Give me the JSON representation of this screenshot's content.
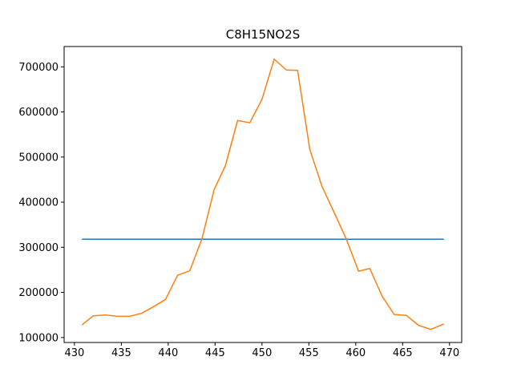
{
  "chart_data": {
    "type": "line",
    "title": "C8H15NO2S",
    "xlabel": "",
    "ylabel": "",
    "xlim": [
      428.9,
      471.3
    ],
    "ylim": [
      89000,
      745000
    ],
    "grid": false,
    "x_ticks": [
      430,
      435,
      440,
      445,
      450,
      455,
      460,
      465,
      470
    ],
    "y_ticks": [
      100000,
      200000,
      300000,
      400000,
      500000,
      600000,
      700000
    ],
    "series": [
      {
        "color": "#1f77b4",
        "x": [
          430.8,
          469.4
        ],
        "y": [
          318000,
          318000
        ]
      },
      {
        "color": "#ff7f0e",
        "x": [
          430.8,
          432.0,
          433.3,
          434.6,
          435.9,
          437.2,
          438.4,
          439.7,
          441.0,
          442.3,
          443.6,
          444.9,
          446.1,
          447.4,
          448.7,
          450.0,
          451.3,
          452.6,
          453.8,
          455.1,
          456.4,
          457.7,
          459.0,
          460.3,
          461.5,
          462.8,
          464.1,
          465.4,
          466.7,
          468.0,
          469.4
        ],
        "y": [
          128000,
          148000,
          150000,
          147000,
          147000,
          154000,
          168000,
          184000,
          238000,
          248000,
          319000,
          428000,
          481000,
          581000,
          576000,
          628000,
          717000,
          693000,
          692000,
          517000,
          435000,
          377000,
          318000,
          247000,
          253000,
          192000,
          151000,
          149000,
          127000,
          118000,
          130000
        ]
      }
    ]
  }
}
